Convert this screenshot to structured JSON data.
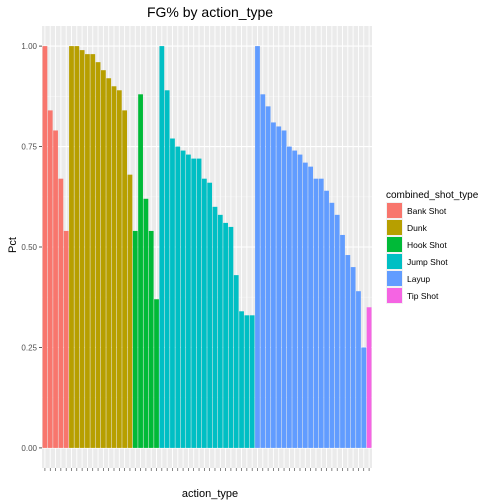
{
  "chart_data": {
    "type": "bar",
    "title": "FG% by action_type",
    "xlabel": "action_type",
    "ylabel": "Pct",
    "ylim": [
      -0.05,
      1.05
    ],
    "yticks": [
      0.0,
      0.25,
      0.5,
      0.75,
      1.0
    ],
    "ytick_labels": [
      "0.00",
      "0.25",
      "0.50",
      "0.75",
      "1.00"
    ],
    "grid": true,
    "legend": {
      "title": "combined_shot_type",
      "placement": "right",
      "entries": [
        {
          "name": "Bank Shot",
          "color": "#F8766D"
        },
        {
          "name": "Dunk",
          "color": "#B79F00"
        },
        {
          "name": "Hook Shot",
          "color": "#00BA38"
        },
        {
          "name": "Jump Shot",
          "color": "#00BFC4"
        },
        {
          "name": "Layup",
          "color": "#619CFF"
        },
        {
          "name": "Tip Shot",
          "color": "#F564E3"
        }
      ]
    },
    "series": [
      {
        "name": "Bank Shot",
        "values": [
          1.0,
          0.84,
          0.79,
          0.67,
          0.54
        ]
      },
      {
        "name": "Dunk",
        "values": [
          1.0,
          1.0,
          0.99,
          0.98,
          0.98,
          0.96,
          0.94,
          0.92,
          0.9,
          0.89,
          0.84,
          0.68
        ]
      },
      {
        "name": "Hook Shot",
        "values": [
          0.54,
          0.88,
          0.62,
          0.54,
          0.37
        ]
      },
      {
        "name": "Jump Shot",
        "values": [
          1.0,
          0.89,
          0.77,
          0.75,
          0.74,
          0.73,
          0.72,
          0.72,
          0.67,
          0.66,
          0.6,
          0.58,
          0.56,
          0.55,
          0.43,
          0.34,
          0.33,
          0.33
        ]
      },
      {
        "name": "Layup",
        "values": [
          1.0,
          0.88,
          0.85,
          0.81,
          0.8,
          0.79,
          0.75,
          0.74,
          0.73,
          0.71,
          0.7,
          0.67,
          0.67,
          0.64,
          0.61,
          0.58,
          0.53,
          0.48,
          0.45,
          0.39,
          0.25
        ]
      },
      {
        "name": "Tip Shot",
        "values": [
          0.35
        ]
      }
    ]
  }
}
